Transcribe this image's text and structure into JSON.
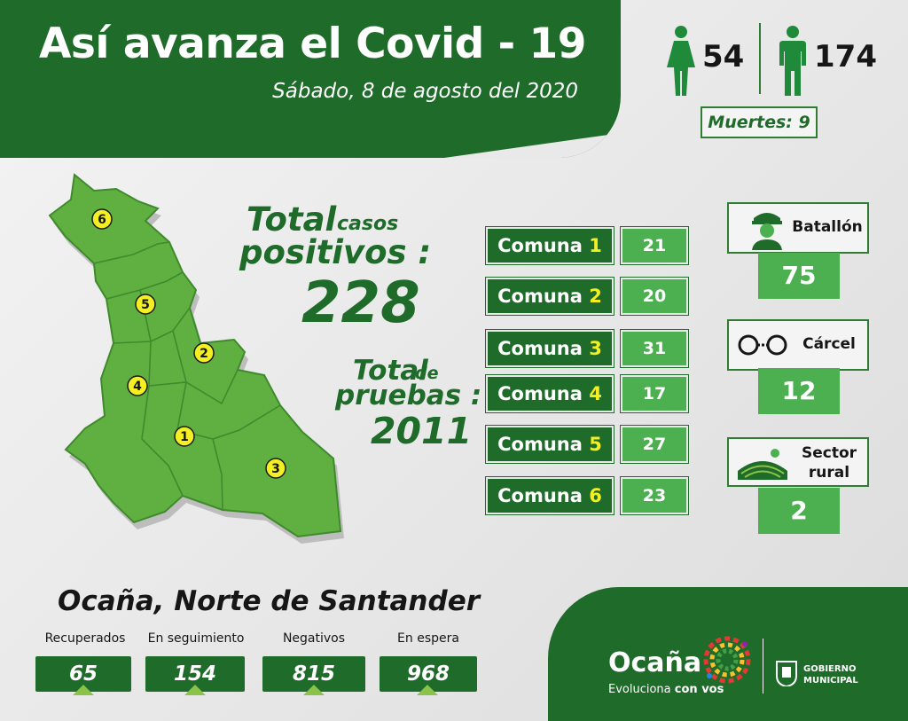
{
  "header": {
    "title": "Así avanza el Covid - 19",
    "date": "Sábado, 8 de agosto del 2020"
  },
  "gender": {
    "female_count": "54",
    "male_count": "174",
    "deaths_label": "Muertes: 9"
  },
  "totals": {
    "cases_word_a": "Total",
    "cases_word_small": "casos",
    "cases_word_b": "positivos :",
    "cases_value": "228",
    "tests_word_a": "Total",
    "tests_word_small": "de",
    "tests_word_b": "pruebas :",
    "tests_value": "2011"
  },
  "map": {
    "zones": [
      "1",
      "2",
      "3",
      "4",
      "5",
      "6"
    ]
  },
  "comunas": [
    {
      "prefix": "Comuna",
      "num": "1",
      "value": "21"
    },
    {
      "prefix": "Comuna",
      "num": "2",
      "value": "20"
    },
    {
      "prefix": "Comuna",
      "num": "3",
      "value": "31"
    },
    {
      "prefix": "Comuna",
      "num": "4",
      "value": "17"
    },
    {
      "prefix": "Comuna",
      "num": "5",
      "value": "27"
    },
    {
      "prefix": "Comuna",
      "num": "6",
      "value": "23"
    }
  ],
  "cards": {
    "batallon": {
      "label": "Batallón",
      "value": "75",
      "icon": "soldier-icon"
    },
    "carcel": {
      "label": "Cárcel",
      "value": "12",
      "icon": "handcuffs-icon"
    },
    "rural": {
      "label_a": "Sector",
      "label_b": "rural",
      "value": "2",
      "icon": "farm-field-icon"
    }
  },
  "footer": {
    "city": "Ocaña, Norte de Santander",
    "stats": [
      {
        "label": "Recuperados",
        "value": "65"
      },
      {
        "label": "En seguimiento",
        "value": "154"
      },
      {
        "label": "Negativos",
        "value": "815"
      },
      {
        "label": "En espera",
        "value": "968"
      }
    ],
    "brand_name": "Ocaña",
    "brand_tagline_a": "Evoluciona",
    "brand_tagline_b": "con vos",
    "gov_line_a": "GOBIERNO",
    "gov_line_b": "MUNICIPAL"
  },
  "colors": {
    "dark_green": "#1e6b2a",
    "light_green": "#4caf50",
    "accent_yellow": "#f3ef23",
    "map_green": "#5fb040"
  }
}
